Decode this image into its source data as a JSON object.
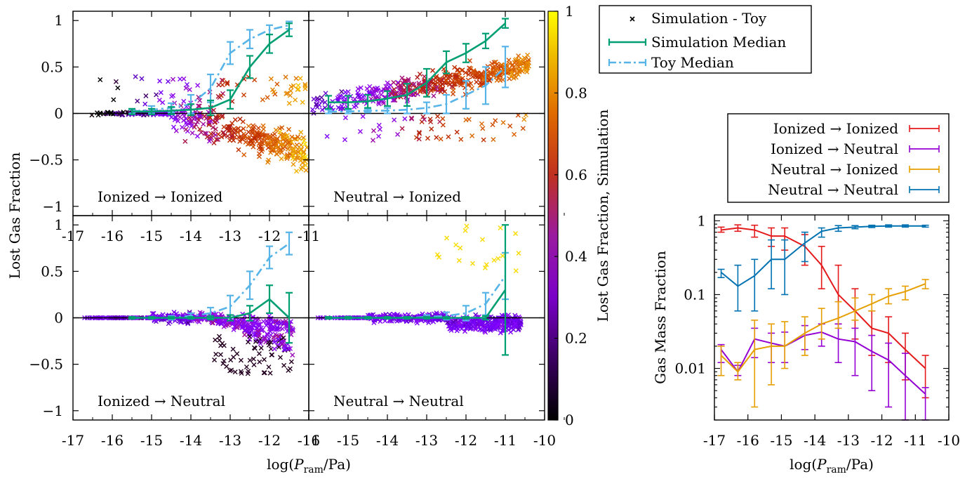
{
  "colors": {
    "simulation_median": "#009e73",
    "toy_median": "#56b4e9",
    "ionized_ionized": "#e41a1c",
    "ionized_neutral": "#9400d3",
    "neutral_ionized": "#e69f00",
    "neutral_neutral": "#0072b2"
  },
  "chart_data": [
    {
      "type": "scatter",
      "xlabel": "log(P_ram/Pa)",
      "ylabel": "Lost Gas Fraction",
      "colorbar": {
        "label": "Lost Gas Fraction, Simulation",
        "range": [
          0,
          1
        ],
        "ticks": [
          "0",
          "0.2",
          "0.4",
          "0.6",
          "0.8",
          "1"
        ],
        "colormap": "gnuplot"
      },
      "legend": {
        "placement": "top-right, outside",
        "entries": [
          "Simulation - Toy",
          "Simulation Median",
          "Toy Median"
        ]
      },
      "panels": [
        {
          "label": "Ionized → Ionized",
          "xlim": [
            -17,
            -11
          ],
          "ylim": [
            -1.1,
            1.1
          ],
          "xticks": [
            "-17",
            "-16",
            "-15",
            "-14",
            "-13",
            "-12",
            "-11"
          ],
          "yticks": [
            "−1",
            "−0.5",
            "0",
            "0.5",
            "1"
          ],
          "simulation_median": {
            "x": [
              -15.5,
              -15.0,
              -14.5,
              -14.0,
              -13.5,
              -13.0,
              -12.5,
              -12.0,
              -11.5
            ],
            "y": [
              0.02,
              0.02,
              0.03,
              0.04,
              0.06,
              0.15,
              0.5,
              0.75,
              0.9
            ],
            "err": [
              0.03,
              0.03,
              0.04,
              0.06,
              0.08,
              0.1,
              0.12,
              0.1,
              0.07
            ]
          },
          "toy_median": {
            "x": [
              -15.5,
              -15.0,
              -14.5,
              -14.0,
              -13.5,
              -13.0,
              -12.5,
              -12.0,
              -11.5
            ],
            "y": [
              0.02,
              0.04,
              0.06,
              0.1,
              0.27,
              0.65,
              0.8,
              0.9,
              0.95
            ],
            "err": [
              0.02,
              0.04,
              0.05,
              0.1,
              0.15,
              0.12,
              0.1,
              0.05,
              0.04
            ]
          }
        },
        {
          "label": "Neutral → Ionized",
          "xlim": [
            -16,
            -10
          ],
          "ylim": [
            -1.1,
            1.1
          ],
          "simulation_median": {
            "x": [
              -15.5,
              -15.0,
              -14.5,
              -14.0,
              -13.5,
              -13.0,
              -12.5,
              -12.0,
              -11.5,
              -11.0
            ],
            "y": [
              0.12,
              0.12,
              0.13,
              0.16,
              0.2,
              0.33,
              0.55,
              0.65,
              0.78,
              0.97
            ],
            "err": [
              0.07,
              0.07,
              0.07,
              0.08,
              0.12,
              0.15,
              0.12,
              0.1,
              0.08,
              0.05
            ]
          },
          "toy_median": {
            "x": [
              -15.5,
              -15.0,
              -14.5,
              -14.0,
              -13.5,
              -13.0,
              -12.5,
              -12.0,
              -11.5,
              -11.0
            ],
            "y": [
              0.02,
              0.02,
              0.03,
              0.03,
              0.04,
              0.06,
              0.1,
              0.2,
              0.3,
              0.5
            ],
            "err": [
              0.02,
              0.02,
              0.02,
              0.03,
              0.04,
              0.06,
              0.1,
              0.15,
              0.2,
              0.22
            ]
          }
        },
        {
          "label": "Ionized → Neutral",
          "xlim": [
            -17,
            -11
          ],
          "ylim": [
            -1.1,
            1.1
          ],
          "xticks": [
            "-17",
            "-16",
            "-15",
            "-14",
            "-13",
            "-12",
            "-11"
          ],
          "yticks": [
            "−1",
            "−0.5",
            "0",
            "0.5",
            "1"
          ],
          "simulation_median": {
            "x": [
              -15.5,
              -15.0,
              -14.5,
              -14.0,
              -13.5,
              -13.0,
              -12.5,
              -12.0,
              -11.5
            ],
            "y": [
              0.0,
              0.0,
              0.0,
              0.0,
              0.0,
              0.0,
              0.05,
              0.2,
              0.0
            ],
            "err": [
              0.01,
              0.01,
              0.01,
              0.01,
              0.02,
              0.03,
              0.08,
              0.15,
              0.27
            ]
          },
          "toy_median": {
            "x": [
              -15.5,
              -15.0,
              -14.5,
              -14.0,
              -13.5,
              -13.0,
              -12.5,
              -12.0,
              -11.5
            ],
            "y": [
              0.0,
              0.0,
              0.0,
              0.02,
              0.05,
              0.12,
              0.35,
              0.65,
              0.8
            ],
            "err": [
              0.01,
              0.01,
              0.02,
              0.03,
              0.06,
              0.12,
              0.15,
              0.12,
              0.12
            ]
          }
        },
        {
          "label": "Neutral → Neutral",
          "xlim": [
            -16,
            -10
          ],
          "ylim": [
            -1.1,
            1.1
          ],
          "xticks": [
            "-16",
            "-15",
            "-14",
            "-13",
            "-12",
            "-11",
            "-10"
          ],
          "simulation_median": {
            "x": [
              -15.5,
              -15.0,
              -14.5,
              -14.0,
              -13.5,
              -13.0,
              -12.5,
              -12.0,
              -11.5,
              -11.0
            ],
            "y": [
              0.0,
              0.0,
              0.0,
              0.0,
              0.0,
              0.0,
              0.0,
              0.0,
              0.0,
              0.3
            ],
            "err": [
              0.01,
              0.01,
              0.01,
              0.01,
              0.01,
              0.01,
              0.01,
              0.01,
              0.02,
              0.7
            ]
          },
          "toy_median": {
            "x": [
              -15.5,
              -15.0,
              -14.5,
              -14.0,
              -13.5,
              -13.0,
              -12.5,
              -12.0,
              -11.5,
              -11.0
            ],
            "y": [
              0.0,
              0.0,
              0.0,
              0.0,
              0.0,
              0.01,
              0.02,
              0.05,
              0.15,
              0.45
            ],
            "err": [
              0.01,
              0.01,
              0.01,
              0.01,
              0.01,
              0.02,
              0.04,
              0.08,
              0.12,
              0.25
            ]
          }
        }
      ]
    },
    {
      "type": "line",
      "xlabel": "log(P_ram/Pa)",
      "ylabel": "Gas Mass Fraction",
      "xlim": [
        -17,
        -10
      ],
      "ylim": [
        0.002,
        1.2
      ],
      "log_y": true,
      "xticks": [
        "-17",
        "-16",
        "-15",
        "-14",
        "-13",
        "-12",
        "-11",
        "-10"
      ],
      "yticks": [
        "0.01",
        "0.1",
        "1"
      ],
      "legend": {
        "placement": "above plot, outside"
      },
      "x": [
        -16.8,
        -16.3,
        -15.8,
        -15.3,
        -14.9,
        -14.3,
        -13.8,
        -13.3,
        -12.8,
        -12.3,
        -11.8,
        -11.3,
        -10.7
      ],
      "series": [
        {
          "name": "Ionized → Ionized",
          "values": [
            0.75,
            0.8,
            0.75,
            0.62,
            0.62,
            0.45,
            0.25,
            0.1,
            0.06,
            0.035,
            0.03,
            0.018,
            0.01
          ],
          "errlo": [
            0.7,
            0.72,
            0.6,
            0.45,
            0.4,
            0.25,
            0.12,
            0.04,
            0.025,
            0.015,
            0.012,
            0.007,
            0.004
          ],
          "errhi": [
            0.82,
            0.88,
            0.87,
            0.8,
            0.8,
            0.65,
            0.45,
            0.25,
            0.12,
            0.06,
            0.05,
            0.03,
            0.015
          ]
        },
        {
          "name": "Ionized → Neutral",
          "values": [
            0.018,
            0.009,
            0.025,
            0.022,
            0.02,
            0.028,
            0.031,
            0.025,
            0.023,
            0.017,
            0.013,
            0.008,
            0.0045
          ],
          "errlo": [
            0.012,
            0.008,
            0.014,
            0.012,
            0.012,
            0.018,
            0.02,
            0.012,
            0.008,
            0.005,
            0.003,
            0.002,
            0.002
          ],
          "errhi": [
            0.021,
            0.011,
            0.035,
            0.03,
            0.031,
            0.038,
            0.04,
            0.04,
            0.035,
            0.028,
            0.022,
            0.016,
            0.0055
          ]
        },
        {
          "name": "Neutral → Ionized",
          "values": [
            0.015,
            0.009,
            0.018,
            0.02,
            0.02,
            0.03,
            0.04,
            0.048,
            0.06,
            0.075,
            0.095,
            0.11,
            0.14
          ],
          "errlo": [
            0.008,
            0.007,
            0.003,
            0.006,
            0.01,
            0.015,
            0.025,
            0.035,
            0.045,
            0.06,
            0.075,
            0.085,
            0.12
          ],
          "errhi": [
            0.02,
            0.012,
            0.045,
            0.04,
            0.043,
            0.05,
            0.065,
            0.08,
            0.09,
            0.1,
            0.12,
            0.13,
            0.16
          ]
        },
        {
          "name": "Neutral → Neutral",
          "values": [
            0.2,
            0.13,
            0.18,
            0.3,
            0.3,
            0.5,
            0.72,
            0.8,
            0.82,
            0.84,
            0.85,
            0.85,
            0.85
          ],
          "errlo": [
            0.17,
            0.06,
            0.06,
            0.12,
            0.1,
            0.28,
            0.6,
            0.72,
            0.78,
            0.81,
            0.82,
            0.82,
            0.82
          ],
          "errhi": [
            0.22,
            0.25,
            0.3,
            0.55,
            0.55,
            0.7,
            0.8,
            0.86,
            0.86,
            0.87,
            0.88,
            0.88,
            0.87
          ]
        }
      ]
    }
  ]
}
